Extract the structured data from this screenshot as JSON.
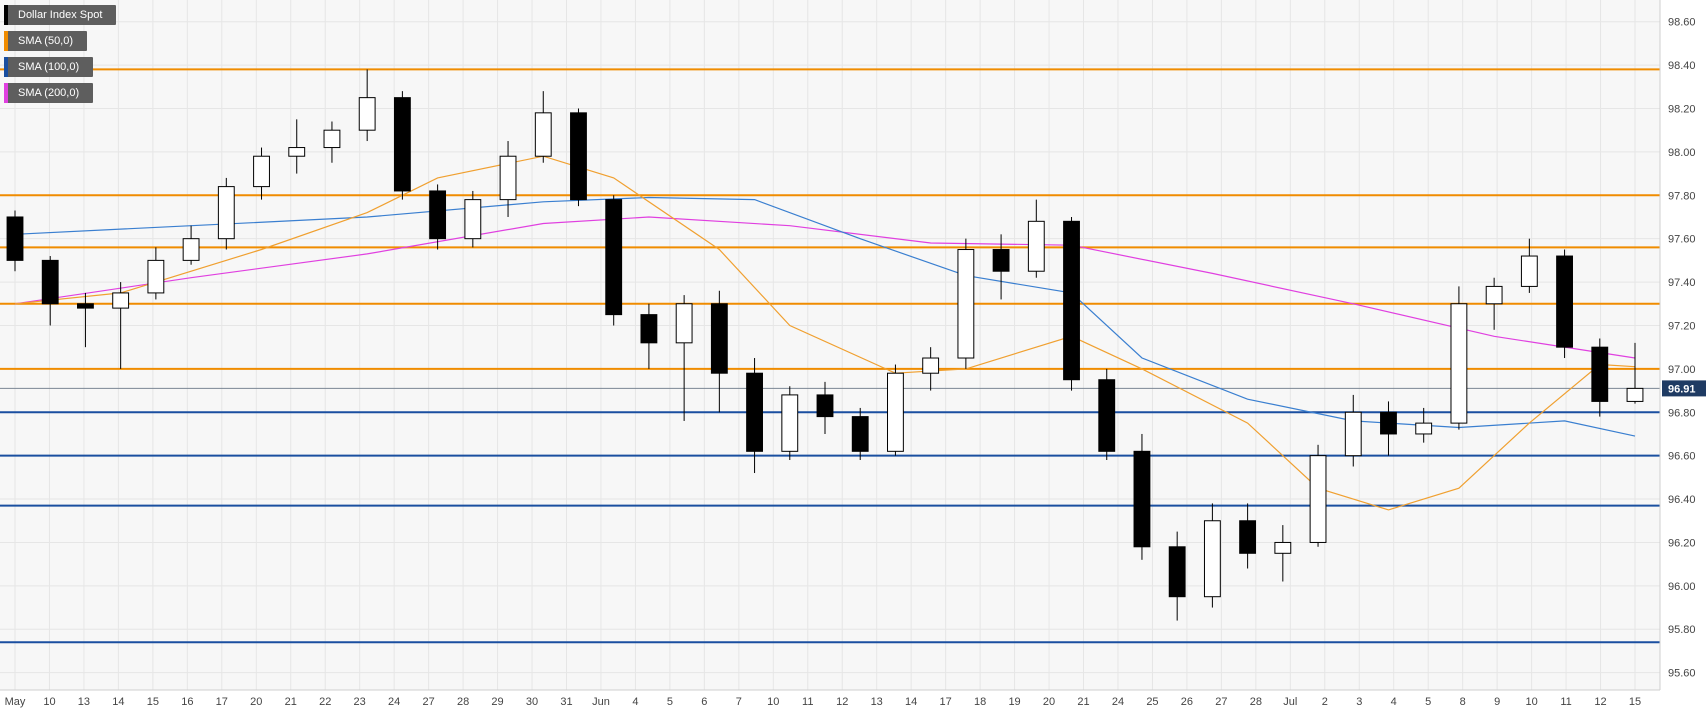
{
  "colors": {
    "background": "#f7f7f7",
    "grid": "#e6e6e6",
    "resistance": "#f08c00",
    "support": "#1a4fa0",
    "sma50": "#f0a030",
    "sma100": "#3a7fd0",
    "sma200": "#e040e0",
    "candle": "#000000",
    "price_tag_bg": "#1f3b63"
  },
  "legend": [
    {
      "label": "Dollar Index Spot",
      "color": "#000000"
    },
    {
      "label": "SMA (50,0)",
      "color": "#f08c00"
    },
    {
      "label": "SMA (100,0)",
      "color": "#1a4fa0"
    },
    {
      "label": "SMA (200,0)",
      "color": "#e040e0"
    }
  ],
  "last_price": "96.91",
  "chart_data": {
    "type": "candlestick",
    "title": "",
    "ylim": [
      95.52,
      98.7
    ],
    "y_ticks": [
      "98.60",
      "98.40",
      "98.20",
      "98.00",
      "97.80",
      "97.60",
      "97.40",
      "97.20",
      "97.00",
      "96.80",
      "96.60",
      "96.40",
      "96.20",
      "96.00",
      "95.80",
      "95.60"
    ],
    "x_ticks": [
      "May",
      "10",
      "13",
      "14",
      "15",
      "16",
      "17",
      "20",
      "21",
      "22",
      "23",
      "24",
      "27",
      "28",
      "29",
      "30",
      "31",
      "Jun",
      "4",
      "5",
      "6",
      "7",
      "10",
      "11",
      "12",
      "13",
      "14",
      "17",
      "18",
      "19",
      "20",
      "21",
      "24",
      "25",
      "26",
      "27",
      "28",
      "Jul",
      "2",
      "3",
      "4",
      "5",
      "8",
      "9",
      "10",
      "11",
      "12",
      "15"
    ],
    "resistance_levels": [
      98.38,
      97.8,
      97.56,
      97.3,
      97.0
    ],
    "support_levels": [
      96.8,
      96.6,
      96.37,
      95.74
    ],
    "last_price_level": 96.91,
    "candles": [
      {
        "date": "May 9",
        "o": 97.7,
        "h": 97.73,
        "l": 97.45,
        "c": 97.5
      },
      {
        "date": "May 10",
        "o": 97.5,
        "h": 97.52,
        "l": 97.2,
        "c": 97.3
      },
      {
        "date": "May 13",
        "o": 97.3,
        "h": 97.35,
        "l": 97.1,
        "c": 97.28
      },
      {
        "date": "May 14",
        "o": 97.28,
        "h": 97.4,
        "l": 97.0,
        "c": 97.35
      },
      {
        "date": "May 15",
        "o": 97.35,
        "h": 97.56,
        "l": 97.32,
        "c": 97.5
      },
      {
        "date": "May 16",
        "o": 97.5,
        "h": 97.66,
        "l": 97.48,
        "c": 97.6
      },
      {
        "date": "May 17",
        "o": 97.6,
        "h": 97.88,
        "l": 97.55,
        "c": 97.84
      },
      {
        "date": "May 20",
        "o": 97.84,
        "h": 98.02,
        "l": 97.78,
        "c": 97.98
      },
      {
        "date": "May 21",
        "o": 97.98,
        "h": 98.15,
        "l": 97.9,
        "c": 98.02
      },
      {
        "date": "May 22",
        "o": 98.02,
        "h": 98.14,
        "l": 97.95,
        "c": 98.1
      },
      {
        "date": "May 23",
        "o": 98.1,
        "h": 98.38,
        "l": 98.05,
        "c": 98.25
      },
      {
        "date": "May 24",
        "o": 98.25,
        "h": 98.28,
        "l": 97.78,
        "c": 97.82
      },
      {
        "date": "May 27",
        "o": 97.82,
        "h": 97.85,
        "l": 97.55,
        "c": 97.6
      },
      {
        "date": "May 28",
        "o": 97.6,
        "h": 97.82,
        "l": 97.56,
        "c": 97.78
      },
      {
        "date": "May 29",
        "o": 97.78,
        "h": 98.05,
        "l": 97.7,
        "c": 97.98
      },
      {
        "date": "May 30",
        "o": 97.98,
        "h": 98.28,
        "l": 97.95,
        "c": 98.18
      },
      {
        "date": "May 31",
        "o": 98.18,
        "h": 98.2,
        "l": 97.75,
        "c": 97.78
      },
      {
        "date": "Jun 3",
        "o": 97.78,
        "h": 97.8,
        "l": 97.2,
        "c": 97.25
      },
      {
        "date": "Jun 4",
        "o": 97.25,
        "h": 97.3,
        "l": 97.0,
        "c": 97.12
      },
      {
        "date": "Jun 5",
        "o": 97.12,
        "h": 97.34,
        "l": 96.76,
        "c": 97.3
      },
      {
        "date": "Jun 6",
        "o": 97.3,
        "h": 97.36,
        "l": 96.8,
        "c": 96.98
      },
      {
        "date": "Jun 7",
        "o": 96.98,
        "h": 97.05,
        "l": 96.52,
        "c": 96.62
      },
      {
        "date": "Jun 10",
        "o": 96.62,
        "h": 96.92,
        "l": 96.58,
        "c": 96.88
      },
      {
        "date": "Jun 11",
        "o": 96.88,
        "h": 96.94,
        "l": 96.7,
        "c": 96.78
      },
      {
        "date": "Jun 12",
        "o": 96.78,
        "h": 96.82,
        "l": 96.58,
        "c": 96.62
      },
      {
        "date": "Jun 13",
        "o": 96.62,
        "h": 97.02,
        "l": 96.6,
        "c": 96.98
      },
      {
        "date": "Jun 14",
        "o": 96.98,
        "h": 97.1,
        "l": 96.9,
        "c": 97.05
      },
      {
        "date": "Jun 17",
        "o": 97.05,
        "h": 97.6,
        "l": 97.0,
        "c": 97.55
      },
      {
        "date": "Jun 18",
        "o": 97.55,
        "h": 97.62,
        "l": 97.32,
        "c": 97.45
      },
      {
        "date": "Jun 19",
        "o": 97.45,
        "h": 97.78,
        "l": 97.42,
        "c": 97.68
      },
      {
        "date": "Jun 20",
        "o": 97.68,
        "h": 97.7,
        "l": 96.9,
        "c": 96.95
      },
      {
        "date": "Jun 21",
        "o": 96.95,
        "h": 97.0,
        "l": 96.58,
        "c": 96.62
      },
      {
        "date": "Jun 24",
        "o": 96.62,
        "h": 96.7,
        "l": 96.12,
        "c": 96.18
      },
      {
        "date": "Jun 25",
        "o": 96.18,
        "h": 96.25,
        "l": 95.84,
        "c": 95.95
      },
      {
        "date": "Jun 26",
        "o": 95.95,
        "h": 96.38,
        "l": 95.9,
        "c": 96.3
      },
      {
        "date": "Jun 27",
        "o": 96.3,
        "h": 96.38,
        "l": 96.08,
        "c": 96.15
      },
      {
        "date": "Jun 28",
        "o": 96.15,
        "h": 96.28,
        "l": 96.02,
        "c": 96.2
      },
      {
        "date": "Jul 1",
        "o": 96.2,
        "h": 96.65,
        "l": 96.18,
        "c": 96.6
      },
      {
        "date": "Jul 2",
        "o": 96.6,
        "h": 96.88,
        "l": 96.55,
        "c": 96.8
      },
      {
        "date": "Jul 3",
        "o": 96.8,
        "h": 96.85,
        "l": 96.6,
        "c": 96.7
      },
      {
        "date": "Jul 4",
        "o": 96.7,
        "h": 96.82,
        "l": 96.66,
        "c": 96.75
      },
      {
        "date": "Jul 5",
        "o": 96.75,
        "h": 97.38,
        "l": 96.72,
        "c": 97.3
      },
      {
        "date": "Jul 8",
        "o": 97.3,
        "h": 97.42,
        "l": 97.18,
        "c": 97.38
      },
      {
        "date": "Jul 9",
        "o": 97.38,
        "h": 97.6,
        "l": 97.35,
        "c": 97.52
      },
      {
        "date": "Jul 10",
        "o": 97.52,
        "h": 97.55,
        "l": 97.05,
        "c": 97.1
      },
      {
        "date": "Jul 11",
        "o": 97.1,
        "h": 97.14,
        "l": 96.78,
        "c": 96.85
      },
      {
        "date": "Jul 12",
        "o": 96.85,
        "h": 97.12,
        "l": 96.84,
        "c": 96.91
      }
    ],
    "sma50": [
      {
        "date": "May 9",
        "v": 97.3
      },
      {
        "date": "May 14",
        "v": 97.35
      },
      {
        "date": "May 20",
        "v": 97.55
      },
      {
        "date": "May 23",
        "v": 97.72
      },
      {
        "date": "May 27",
        "v": 97.88
      },
      {
        "date": "May 30",
        "v": 97.98
      },
      {
        "date": "Jun 3",
        "v": 97.88
      },
      {
        "date": "Jun 6",
        "v": 97.55
      },
      {
        "date": "Jun 10",
        "v": 97.2
      },
      {
        "date": "Jun 13",
        "v": 96.98
      },
      {
        "date": "Jun 17",
        "v": 97.0
      },
      {
        "date": "Jun 20",
        "v": 97.15
      },
      {
        "date": "Jun 24",
        "v": 97.0
      },
      {
        "date": "Jun 27",
        "v": 96.75
      },
      {
        "date": "Jul 1",
        "v": 96.45
      },
      {
        "date": "Jul 3",
        "v": 96.35
      },
      {
        "date": "Jul 5",
        "v": 96.45
      },
      {
        "date": "Jul 9",
        "v": 96.75
      },
      {
        "date": "Jul 11",
        "v": 97.02
      },
      {
        "date": "Jul 12",
        "v": 97.01
      }
    ],
    "sma100": [
      {
        "date": "May 9",
        "v": 97.62
      },
      {
        "date": "May 16",
        "v": 97.66
      },
      {
        "date": "May 23",
        "v": 97.7
      },
      {
        "date": "May 30",
        "v": 97.77
      },
      {
        "date": "Jun 4",
        "v": 97.79
      },
      {
        "date": "Jun 7",
        "v": 97.78
      },
      {
        "date": "Jun 12",
        "v": 97.6
      },
      {
        "date": "Jun 17",
        "v": 97.43
      },
      {
        "date": "Jun 20",
        "v": 97.35
      },
      {
        "date": "Jun 24",
        "v": 97.05
      },
      {
        "date": "Jun 27",
        "v": 96.86
      },
      {
        "date": "Jul 2",
        "v": 96.76
      },
      {
        "date": "Jul 5",
        "v": 96.73
      },
      {
        "date": "Jul 10",
        "v": 96.76
      },
      {
        "date": "Jul 12",
        "v": 96.69
      }
    ],
    "sma200": [
      {
        "date": "May 9",
        "v": 97.3
      },
      {
        "date": "May 16",
        "v": 97.42
      },
      {
        "date": "May 23",
        "v": 97.53
      },
      {
        "date": "May 30",
        "v": 97.67
      },
      {
        "date": "Jun 4",
        "v": 97.7
      },
      {
        "date": "Jun 10",
        "v": 97.66
      },
      {
        "date": "Jun 14",
        "v": 97.58
      },
      {
        "date": "Jun 20",
        "v": 97.57
      },
      {
        "date": "Jun 26",
        "v": 97.44
      },
      {
        "date": "Jul 2",
        "v": 97.3
      },
      {
        "date": "Jul 8",
        "v": 97.15
      },
      {
        "date": "Jul 12",
        "v": 97.05
      }
    ]
  }
}
